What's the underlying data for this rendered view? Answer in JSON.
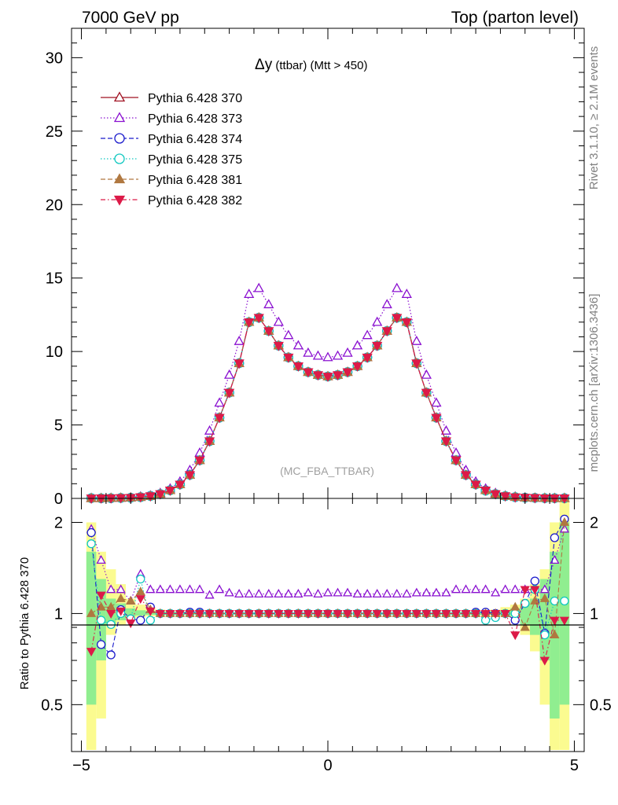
{
  "header": {
    "left": "7000 GeV pp",
    "right": "Top (parton level)"
  },
  "side": {
    "rivet": "Rivet 3.1.10, ≥ 2.1M events",
    "mcplots": "mcplots.cern.ch [arXiv:1306.3436]"
  },
  "main_plot": {
    "title_symbol": "Δy",
    "title_rest": " (ttbar) (Mtt > 450)",
    "watermark": "(MC_FBA_TTBAR)",
    "y_ticks": [
      "0",
      "5",
      "10",
      "15",
      "20",
      "25",
      "30"
    ]
  },
  "ratio_plot": {
    "ylabel": "Ratio to Pythia 6.428 370",
    "y_ticks_left": [
      "0.5",
      "1",
      "2"
    ],
    "y_ticks_right": [
      "0.5",
      "1",
      "2"
    ]
  },
  "x_ticks": [
    "−5",
    "0",
    "5"
  ],
  "legend": [
    {
      "label": "Pythia 6.428 370",
      "color": "#a01020",
      "marker": "triangle-open",
      "dash": "solid"
    },
    {
      "label": "Pythia 6.428 373",
      "color": "#8a10d0",
      "marker": "triangle-open",
      "dash": "dotted"
    },
    {
      "label": "Pythia 6.428 374",
      "color": "#1a1acc",
      "marker": "circle-open",
      "dash": "dashed"
    },
    {
      "label": "Pythia 6.428 375",
      "color": "#10c8c0",
      "marker": "circle-open",
      "dash": "dotted"
    },
    {
      "label": "Pythia 6.428 381",
      "color": "#b07840",
      "marker": "triangle-filled",
      "dash": "dashed"
    },
    {
      "label": "Pythia 6.428 382",
      "color": "#dc1a48",
      "marker": "triangle-down-filled",
      "dash": "dashdot"
    }
  ],
  "chart_data": {
    "type": "line",
    "xlim": [
      -5.2,
      5.2
    ],
    "ylim": [
      0,
      32
    ],
    "ratio_ylim": [
      0.35,
      2.4
    ],
    "ratio_scale": "log",
    "x": [
      -4.8,
      -4.6,
      -4.4,
      -4.2,
      -4.0,
      -3.8,
      -3.6,
      -3.4,
      -3.2,
      -3.0,
      -2.8,
      -2.6,
      -2.4,
      -2.2,
      -2.0,
      -1.8,
      -1.6,
      -1.4,
      -1.2,
      -1.0,
      -0.8,
      -0.6,
      -0.4,
      -0.2,
      0.0,
      0.2,
      0.4,
      0.6,
      0.8,
      1.0,
      1.2,
      1.4,
      1.6,
      1.8,
      2.0,
      2.2,
      2.4,
      2.6,
      2.8,
      3.0,
      3.2,
      3.4,
      3.6,
      3.8,
      4.0,
      4.2,
      4.4,
      4.6,
      4.8
    ],
    "series": [
      {
        "name": "Pythia 6.428 370",
        "values": [
          0.01,
          0.01,
          0.02,
          0.03,
          0.05,
          0.09,
          0.16,
          0.3,
          0.55,
          0.95,
          1.6,
          2.6,
          3.9,
          5.5,
          7.2,
          9.2,
          12.0,
          12.3,
          11.4,
          10.4,
          9.6,
          9.0,
          8.6,
          8.4,
          8.3,
          8.4,
          8.6,
          9.0,
          9.6,
          10.4,
          11.4,
          12.3,
          12.0,
          9.2,
          7.2,
          5.5,
          3.9,
          2.6,
          1.6,
          0.95,
          0.55,
          0.3,
          0.16,
          0.09,
          0.05,
          0.03,
          0.02,
          0.01,
          0.01
        ]
      },
      {
        "name": "Pythia 6.428 373",
        "values": [
          0.02,
          0.015,
          0.025,
          0.036,
          0.06,
          0.12,
          0.19,
          0.36,
          0.66,
          1.14,
          1.92,
          3.1,
          4.6,
          6.5,
          8.4,
          10.7,
          13.9,
          14.3,
          13.2,
          12.0,
          11.1,
          10.4,
          9.9,
          9.7,
          9.6,
          9.7,
          9.9,
          10.4,
          11.1,
          12.0,
          13.2,
          14.3,
          13.9,
          10.7,
          8.4,
          6.5,
          4.6,
          3.1,
          1.92,
          1.14,
          0.66,
          0.36,
          0.19,
          0.12,
          0.06,
          0.036,
          0.025,
          0.015,
          0.02
        ]
      },
      {
        "name": "Pythia 6.428 374",
        "values": [
          0.0185,
          0.0079,
          0.0146,
          0.0309,
          0.048,
          0.086,
          0.17,
          0.3,
          0.56,
          0.96,
          1.62,
          2.6,
          3.9,
          5.5,
          7.2,
          9.2,
          12.0,
          12.3,
          11.4,
          10.4,
          9.6,
          9.0,
          8.6,
          8.4,
          8.3,
          8.4,
          8.6,
          9.0,
          9.6,
          10.4,
          11.4,
          12.3,
          12.0,
          9.2,
          7.2,
          5.5,
          3.9,
          2.6,
          1.6,
          0.96,
          0.55,
          0.3,
          0.16,
          0.085,
          0.054,
          0.038,
          0.017,
          0.0178,
          0.0205
        ]
      },
      {
        "name": "Pythia 6.428 375",
        "values": [
          0.017,
          0.0095,
          0.0185,
          0.03,
          0.048,
          0.088,
          0.16,
          0.29,
          0.55,
          0.95,
          1.6,
          2.6,
          3.9,
          5.5,
          7.2,
          9.2,
          12.0,
          12.3,
          11.4,
          10.4,
          9.6,
          9.0,
          8.6,
          8.4,
          8.3,
          8.4,
          8.6,
          9.0,
          9.6,
          10.4,
          11.4,
          12.3,
          12.0,
          9.2,
          7.2,
          5.5,
          3.9,
          2.6,
          1.6,
          0.95,
          0.52,
          0.29,
          0.16,
          0.09,
          0.054,
          0.036,
          0.017,
          0.011,
          0.011
        ]
      },
      {
        "name": "Pythia 6.428 381",
        "values": [
          0.01,
          0.0105,
          0.021,
          0.034,
          0.055,
          0.09,
          0.16,
          0.3,
          0.55,
          0.95,
          1.6,
          2.6,
          3.9,
          5.5,
          7.2,
          9.2,
          12.0,
          12.3,
          11.4,
          10.4,
          9.6,
          9.0,
          8.6,
          8.4,
          8.3,
          8.4,
          8.6,
          9.0,
          9.6,
          10.4,
          11.4,
          12.3,
          12.0,
          9.2,
          7.2,
          5.5,
          3.9,
          2.6,
          1.6,
          0.95,
          0.55,
          0.3,
          0.16,
          0.095,
          0.045,
          0.034,
          0.019,
          0.0085,
          0.02
        ]
      },
      {
        "name": "Pythia 6.428 382",
        "values": [
          0.0075,
          0.0115,
          0.02,
          0.031,
          0.047,
          0.092,
          0.16,
          0.3,
          0.55,
          0.95,
          1.6,
          2.6,
          3.9,
          5.5,
          7.2,
          9.2,
          12.0,
          12.3,
          11.4,
          10.4,
          9.6,
          9.0,
          8.6,
          8.4,
          8.3,
          8.4,
          8.6,
          9.0,
          9.6,
          10.4,
          11.4,
          12.3,
          12.0,
          9.2,
          7.2,
          5.5,
          3.9,
          2.6,
          1.6,
          0.95,
          0.55,
          0.3,
          0.16,
          0.085,
          0.06,
          0.036,
          0.014,
          0.0095,
          0.0095
        ]
      }
    ],
    "ratios": [
      {
        "name": "Pythia 6.428 373",
        "values": [
          1.9,
          1.5,
          1.2,
          1.2,
          1.1,
          1.35,
          1.2,
          1.2,
          1.2,
          1.2,
          1.2,
          1.2,
          1.15,
          1.2,
          1.17,
          1.16,
          1.16,
          1.16,
          1.16,
          1.16,
          1.16,
          1.16,
          1.17,
          1.16,
          1.17,
          1.17,
          1.17,
          1.16,
          1.16,
          1.16,
          1.16,
          1.16,
          1.16,
          1.17,
          1.17,
          1.17,
          1.17,
          1.2,
          1.2,
          1.2,
          1.2,
          1.17,
          1.2,
          1.2,
          1.2,
          1.2,
          1.2,
          1.5,
          1.9
        ]
      },
      {
        "name": "Pythia 6.428 374",
        "values": [
          1.85,
          0.79,
          0.73,
          1.03,
          0.96,
          0.95,
          1.05,
          1.0,
          1.0,
          1.0,
          1.01,
          1.01,
          1.0,
          1.0,
          1.0,
          1.0,
          1.0,
          1.0,
          1.0,
          1.0,
          1.0,
          1.0,
          1.0,
          1.0,
          1.0,
          1.0,
          1.0,
          1.0,
          1.0,
          1.0,
          1.0,
          1.0,
          1.0,
          1.0,
          1.0,
          1.0,
          1.0,
          1.0,
          1.0,
          1.01,
          1.01,
          1.0,
          1.0,
          0.95,
          1.08,
          1.28,
          0.86,
          1.78,
          2.05
        ]
      },
      {
        "name": "Pythia 6.428 375",
        "values": [
          1.7,
          0.95,
          0.92,
          1.0,
          0.96,
          1.3,
          0.95,
          1.0,
          1.0,
          1.0,
          1.0,
          1.0,
          1.0,
          1.0,
          1.0,
          1.0,
          1.0,
          1.0,
          1.0,
          1.0,
          1.0,
          1.0,
          1.0,
          1.0,
          1.0,
          1.0,
          1.0,
          1.0,
          1.0,
          1.0,
          1.0,
          1.0,
          1.0,
          1.0,
          1.0,
          1.0,
          1.0,
          1.0,
          1.0,
          1.0,
          0.95,
          0.97,
          1.0,
          1.0,
          1.08,
          1.2,
          0.85,
          1.1,
          1.1
        ]
      },
      {
        "name": "Pythia 6.428 381",
        "values": [
          1.0,
          1.05,
          1.05,
          1.12,
          1.1,
          1.18,
          1.03,
          1.0,
          1.0,
          1.0,
          1.0,
          1.0,
          1.0,
          1.0,
          1.0,
          1.0,
          1.0,
          1.0,
          1.0,
          1.0,
          1.0,
          1.0,
          1.0,
          1.0,
          1.0,
          1.0,
          1.0,
          1.0,
          1.0,
          1.0,
          1.0,
          1.0,
          1.0,
          1.0,
          1.0,
          1.0,
          1.0,
          1.0,
          1.0,
          1.0,
          1.0,
          1.0,
          1.0,
          1.05,
          0.9,
          1.1,
          1.12,
          0.85,
          2.0
        ]
      },
      {
        "name": "Pythia 6.428 382",
        "values": [
          0.75,
          1.15,
          1.0,
          1.02,
          0.93,
          1.12,
          1.02,
          1.0,
          1.0,
          1.0,
          1.0,
          1.0,
          1.0,
          1.0,
          1.0,
          1.0,
          1.0,
          1.0,
          1.0,
          1.0,
          1.0,
          1.0,
          1.0,
          1.0,
          1.0,
          1.0,
          1.0,
          1.0,
          1.0,
          1.0,
          1.0,
          1.0,
          1.0,
          1.0,
          1.0,
          1.0,
          1.0,
          1.0,
          1.0,
          1.0,
          1.0,
          1.0,
          1.0,
          0.85,
          1.2,
          1.2,
          0.7,
          0.95,
          0.95
        ]
      }
    ],
    "band_yellow": [
      [
        0.35,
        2.0
      ],
      [
        0.45,
        1.6
      ],
      [
        0.85,
        1.4
      ],
      [
        0.92,
        1.25
      ],
      [
        0.96,
        1.12
      ],
      [
        0.97,
        1.07
      ],
      [
        0.98,
        1.05
      ],
      [
        0.98,
        1.03
      ],
      [
        0.985,
        1.02
      ],
      [
        0.985,
        1.015
      ],
      [
        0.99,
        1.015
      ],
      [
        0.99,
        1.012
      ],
      [
        0.99,
        1.01
      ],
      [
        0.99,
        1.01
      ],
      [
        0.99,
        1.01
      ],
      [
        0.993,
        1.008
      ],
      [
        0.993,
        1.008
      ],
      [
        0.993,
        1.008
      ],
      [
        0.993,
        1.008
      ],
      [
        0.993,
        1.008
      ],
      [
        0.993,
        1.008
      ],
      [
        0.993,
        1.008
      ],
      [
        0.993,
        1.008
      ],
      [
        0.993,
        1.008
      ],
      [
        0.993,
        1.008
      ],
      [
        0.993,
        1.008
      ],
      [
        0.993,
        1.008
      ],
      [
        0.993,
        1.008
      ],
      [
        0.993,
        1.008
      ],
      [
        0.993,
        1.008
      ],
      [
        0.993,
        1.008
      ],
      [
        0.993,
        1.008
      ],
      [
        0.993,
        1.008
      ],
      [
        0.993,
        1.008
      ],
      [
        0.99,
        1.01
      ],
      [
        0.99,
        1.01
      ],
      [
        0.99,
        1.01
      ],
      [
        0.99,
        1.012
      ],
      [
        0.99,
        1.015
      ],
      [
        0.985,
        1.015
      ],
      [
        0.985,
        1.02
      ],
      [
        0.98,
        1.03
      ],
      [
        0.98,
        1.05
      ],
      [
        0.97,
        1.07
      ],
      [
        0.85,
        1.12
      ],
      [
        0.75,
        1.25
      ],
      [
        0.5,
        1.4
      ],
      [
        0.35,
        2.0
      ],
      [
        0.35,
        2.4
      ]
    ],
    "band_green": [
      [
        0.5,
        1.6
      ],
      [
        0.7,
        1.3
      ],
      [
        0.92,
        1.12
      ],
      [
        0.95,
        1.08
      ],
      [
        0.98,
        1.04
      ],
      [
        0.985,
        1.025
      ],
      [
        0.99,
        1.02
      ],
      [
        0.99,
        1.015
      ],
      [
        0.992,
        1.01
      ],
      [
        0.993,
        1.008
      ],
      [
        0.994,
        1.007
      ],
      [
        0.995,
        1.006
      ],
      [
        0.995,
        1.005
      ],
      [
        0.995,
        1.005
      ],
      [
        0.996,
        1.004
      ],
      [
        0.996,
        1.004
      ],
      [
        0.996,
        1.004
      ],
      [
        0.996,
        1.004
      ],
      [
        0.996,
        1.004
      ],
      [
        0.996,
        1.004
      ],
      [
        0.996,
        1.004
      ],
      [
        0.996,
        1.004
      ],
      [
        0.996,
        1.004
      ],
      [
        0.996,
        1.004
      ],
      [
        0.996,
        1.004
      ],
      [
        0.996,
        1.004
      ],
      [
        0.996,
        1.004
      ],
      [
        0.996,
        1.004
      ],
      [
        0.996,
        1.004
      ],
      [
        0.996,
        1.004
      ],
      [
        0.996,
        1.004
      ],
      [
        0.996,
        1.004
      ],
      [
        0.996,
        1.004
      ],
      [
        0.996,
        1.004
      ],
      [
        0.995,
        1.005
      ],
      [
        0.995,
        1.005
      ],
      [
        0.995,
        1.006
      ],
      [
        0.994,
        1.007
      ],
      [
        0.993,
        1.008
      ],
      [
        0.992,
        1.01
      ],
      [
        0.99,
        1.015
      ],
      [
        0.99,
        1.02
      ],
      [
        0.985,
        1.025
      ],
      [
        0.98,
        1.04
      ],
      [
        0.92,
        1.08
      ],
      [
        0.85,
        1.12
      ],
      [
        0.7,
        1.3
      ],
      [
        0.45,
        1.6
      ],
      [
        0.5,
        2.0
      ]
    ]
  }
}
